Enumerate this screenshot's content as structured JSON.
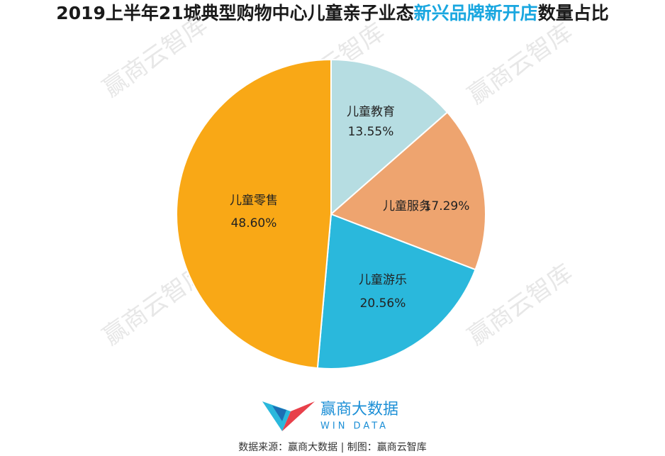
{
  "chart_data": {
    "type": "pie",
    "title_parts": [
      {
        "text": "2019上半年21城典型购物中心儿童亲子业态",
        "color": "#1a1a1a"
      },
      {
        "text": "新兴品牌新开店",
        "color": "#1aa7e0"
      },
      {
        "text": "数量占比",
        "color": "#1a1a1a"
      }
    ],
    "categories": [
      "儿童教育",
      "儿童服务",
      "儿童游乐",
      "儿童零售"
    ],
    "values": [
      13.55,
      17.29,
      20.56,
      48.6
    ],
    "value_labels": [
      "13.55%",
      "17.29%",
      "20.56%",
      "48.60%"
    ],
    "colors": [
      "#b6dde2",
      "#eea46f",
      "#2ab8dc",
      "#f9a816"
    ],
    "watermark": "赢商云智库",
    "logo": {
      "name": "赢商大数据",
      "sub": "WIN DATA"
    },
    "source": "数据来源：赢商大数据 | 制图：赢商云智库"
  }
}
